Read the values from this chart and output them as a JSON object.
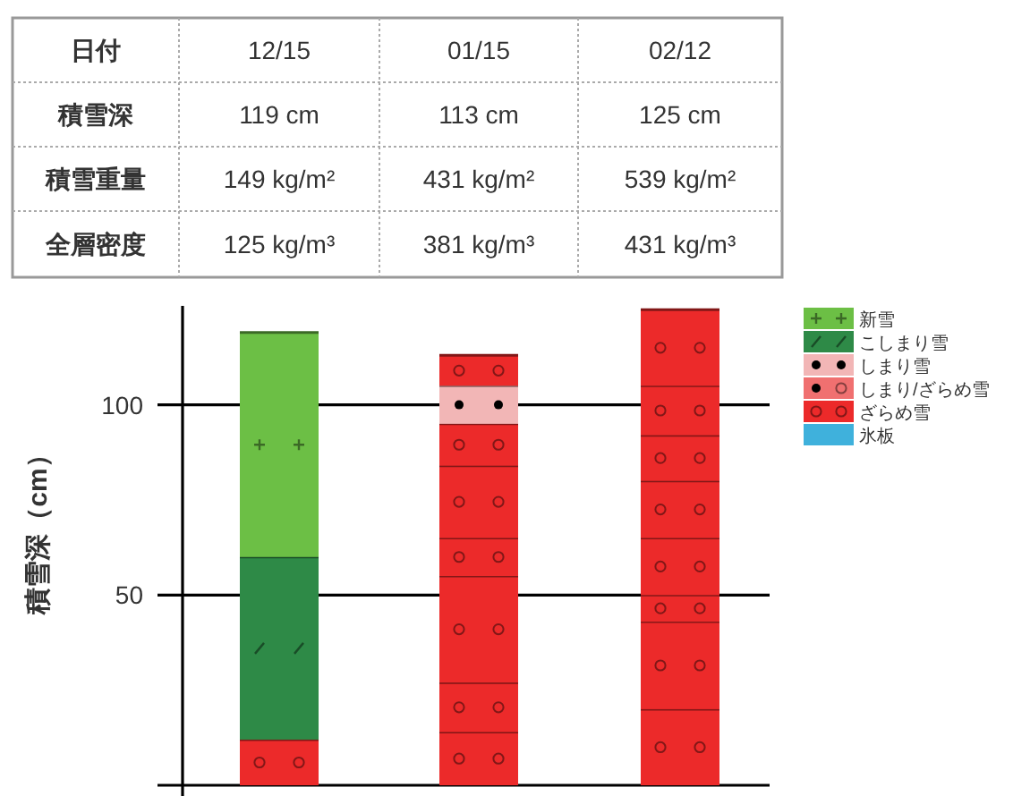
{
  "chart_data": [
    {
      "type": "other",
      "categories": [
        "日付",
        "12/15",
        "01/15",
        "02/12"
      ],
      "y_categories": [
        "積雪深",
        "積雪重量",
        "全層密度"
      ],
      "cell_labels": [
        [
          "119 cm",
          "113 cm",
          "125 cm"
        ],
        [
          "149 kg/m²",
          "431 kg/m²",
          "539 kg/m²"
        ],
        [
          "125 kg/m³",
          "381 kg/m³",
          "431 kg/m³"
        ]
      ]
    },
    {
      "type": "bar",
      "stacked": true,
      "categories": [
        null,
        null,
        null
      ],
      "ylabel": "積雪深（cm）",
      "ylim": [
        0,
        126
      ],
      "yticks": [
        {
          "value": 0,
          "label": null
        },
        50,
        100
      ],
      "grid": "y",
      "legend": "top right",
      "series": [
        {
          "name": "新雪",
          "color": "#6cbf45",
          "marker": [
            "cross",
            "cross"
          ],
          "values": [
            null,
            null,
            null
          ]
        },
        {
          "name": "こしまり雪",
          "color": "#2e8a47",
          "marker": [
            "slash",
            "slash"
          ],
          "values": [
            null,
            null,
            null
          ]
        },
        {
          "name": "しまり雪",
          "color": "#f2b6b6",
          "marker": [
            "circle",
            "circle"
          ],
          "values": [
            null,
            null,
            null
          ]
        },
        {
          "name": "しまり/ざらめ雪",
          "color": "#f07070",
          "marker": [
            "circle",
            "ring"
          ],
          "values": [
            null,
            null,
            null
          ]
        },
        {
          "name": "ざらめ雪",
          "color": "#ec2a2a",
          "marker": [
            "ring",
            "ring"
          ],
          "values": [
            null,
            null,
            null
          ]
        },
        {
          "name": "氷板",
          "color": "#3fb1dc",
          "marker": [
            "none",
            "none"
          ],
          "values": [
            null,
            null,
            null
          ]
        },
        {
          "color": "#ec2a2a",
          "marker": [
            "ring",
            "ring"
          ],
          "values": [
            12,
            14,
            20
          ]
        },
        {
          "color": "#2e8a47",
          "marker": [
            "slash",
            "slash"
          ],
          "values": [
            48,
            null,
            null
          ]
        },
        {
          "color": "#6cbf45",
          "marker": [
            "cross",
            "cross"
          ],
          "values": [
            59,
            null,
            null
          ]
        },
        {
          "color": "#ec2a2a",
          "marker": [
            "ring",
            "ring"
          ],
          "values": [
            null,
            13,
            23
          ]
        },
        {
          "color": "#ec2a2a",
          "marker": [
            "ring",
            "ring"
          ],
          "values": [
            null,
            28,
            7
          ]
        },
        {
          "color": "#ec2a2a",
          "marker": [
            "ring",
            "ring"
          ],
          "values": [
            null,
            10,
            15
          ]
        },
        {
          "color": "#ec2a2a",
          "marker": [
            "ring",
            "ring"
          ],
          "values": [
            null,
            19,
            15
          ]
        },
        {
          "color": "#ec2a2a",
          "marker": [
            "ring",
            "ring"
          ],
          "values": [
            null,
            11,
            12
          ]
        },
        {
          "color": "#f2b6b6",
          "marker": [
            "circle",
            "circle"
          ],
          "values": [
            null,
            10,
            null
          ]
        },
        {
          "color": "#ec2a2a",
          "marker": [
            "ring",
            "ring"
          ],
          "values": [
            null,
            8,
            13
          ]
        },
        {
          "color": "#ec2a2a",
          "marker": [
            "ring",
            "ring"
          ],
          "values": [
            null,
            null,
            20
          ]
        }
      ]
    }
  ]
}
